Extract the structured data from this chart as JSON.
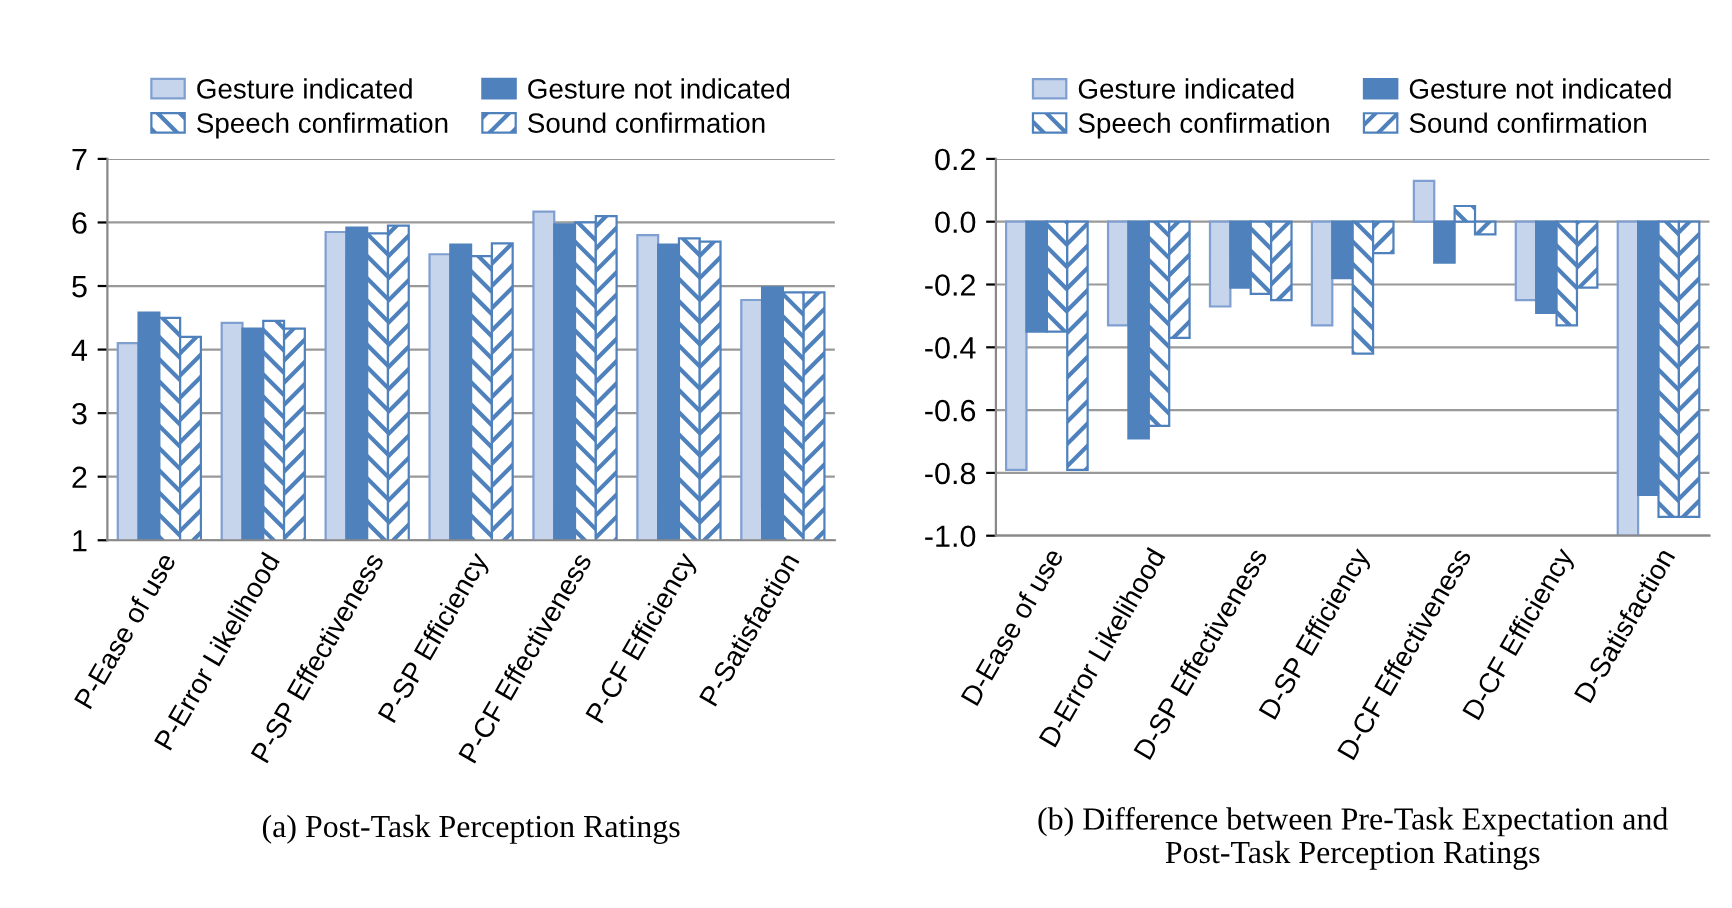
{
  "chart_data": [
    {
      "type": "bar",
      "categories": [
        "P-Ease of use",
        "P-Error Likelihood",
        "P-SP Effectiveness",
        "P-SP Efficiency",
        "P-CF Effectiveness",
        "P-CF Efficiency",
        "P-Satisfaction"
      ],
      "series": [
        {
          "name": "Gesture indicated",
          "color": "#c6d5ec",
          "values": [
            4.1,
            4.42,
            5.85,
            5.5,
            6.17,
            5.8,
            4.78
          ]
        },
        {
          "name": "Gesture not indicated",
          "color": "#4f81bd",
          "values": [
            4.58,
            4.33,
            5.92,
            5.65,
            5.97,
            5.65,
            4.98
          ]
        },
        {
          "name": "Speech confirmation",
          "color": "#4f81bd",
          "values": [
            4.5,
            4.45,
            5.83,
            5.47,
            6.0,
            5.75,
            4.9
          ]
        },
        {
          "name": "Sound confirmation",
          "color": "#4f81bd",
          "values": [
            4.2,
            4.33,
            5.95,
            5.67,
            6.1,
            5.7,
            4.9
          ]
        }
      ],
      "ylim": [
        1,
        7
      ],
      "yticks": [
        1,
        2,
        3,
        4,
        5,
        6,
        7
      ],
      "grid": "y",
      "legend": "top",
      "annotations": [
        "(a) Post-Task Perception Ratings"
      ]
    },
    {
      "type": "bar",
      "categories": [
        "D-Ease of use",
        "D-Error Likelihood",
        "D-SP Effectiveness",
        "D-SP Efficiency",
        "D-CF Effectiveness",
        "D-CF Efficiency",
        "D-Satisfaction"
      ],
      "series": [
        {
          "name": "Gesture indicated",
          "color": "#c6d5ec",
          "values": [
            -0.79,
            -0.33,
            -0.27,
            -0.33,
            0.13,
            -0.25,
            -1.0
          ]
        },
        {
          "name": "Gesture not indicated",
          "color": "#4f81bd",
          "values": [
            -0.35,
            -0.69,
            -0.21,
            -0.18,
            -0.13,
            -0.29,
            -0.87
          ]
        },
        {
          "name": "Speech confirmation",
          "color": "#4f81bd",
          "values": [
            -0.35,
            -0.65,
            -0.23,
            -0.42,
            0.05,
            -0.33,
            -0.94
          ]
        },
        {
          "name": "Sound confirmation",
          "color": "#4f81bd",
          "values": [
            -0.79,
            -0.37,
            -0.25,
            -0.1,
            -0.04,
            -0.21,
            -0.94
          ]
        }
      ],
      "ylim": [
        -1.0,
        0.2
      ],
      "yticks": [
        {
          "value": -1.0,
          "label": "-1.0"
        },
        {
          "value": -0.8,
          "label": "-0.8"
        },
        {
          "value": -0.6,
          "label": "-0.6"
        },
        {
          "value": -0.4,
          "label": "-0.4"
        },
        {
          "value": -0.2,
          "label": "-0.2"
        },
        {
          "value": 0.0,
          "label": "0.0"
        },
        {
          "value": 0.2,
          "label": "0.2"
        }
      ],
      "grid": "y",
      "legend": "top",
      "annotations": [
        "(b) Difference between Pre-Task Expectation and Post-Task Perception Ratings"
      ]
    }
  ]
}
